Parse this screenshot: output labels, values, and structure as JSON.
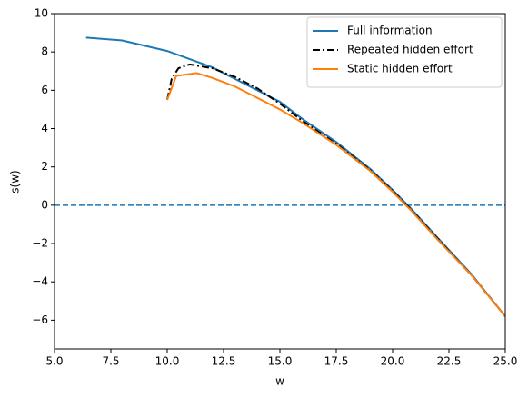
{
  "chart_data": {
    "type": "line",
    "xlabel": "w",
    "ylabel": "s(w)",
    "xlim": [
      5,
      25
    ],
    "ylim": [
      -7.5,
      10
    ],
    "xticks": [
      {
        "value": 5,
        "label": "5.0"
      },
      {
        "value": 7.5,
        "label": "7.5"
      },
      {
        "value": 10,
        "label": "10.0"
      },
      {
        "value": 12.5,
        "label": "12.5"
      },
      {
        "value": 15,
        "label": "15.0"
      },
      {
        "value": 17.5,
        "label": "17.5"
      },
      {
        "value": 20,
        "label": "20.0"
      },
      {
        "value": 22.5,
        "label": "22.5"
      },
      {
        "value": 25,
        "label": "25.0"
      }
    ],
    "yticks": [
      {
        "value": -6,
        "label": "−6"
      },
      {
        "value": -4,
        "label": "−4"
      },
      {
        "value": -2,
        "label": "−2"
      },
      0,
      2,
      4,
      6,
      8,
      10
    ],
    "hline": 0,
    "hline_color": "#1f77b4",
    "hline_style": "dashed",
    "legend": "upper right",
    "series": [
      {
        "name": "Full information",
        "color": "#1f77b4",
        "style": "solid",
        "x": [
          6.4,
          8,
          10,
          12,
          14,
          15,
          16,
          17.5,
          19,
          20,
          20.8,
          22,
          23.5,
          25
        ],
        "values": [
          8.75,
          8.6,
          8.05,
          7.2,
          6.0,
          5.4,
          4.5,
          3.3,
          1.9,
          0.8,
          -0.15,
          -1.7,
          -3.6,
          -5.8
        ]
      },
      {
        "name": "Repeated hidden effort",
        "color": "#000000",
        "style": "dashdot",
        "x": [
          10,
          10.2,
          10.5,
          11,
          12,
          13,
          14,
          15,
          16,
          17.5,
          19,
          20,
          20.8,
          22,
          23.5,
          25
        ],
        "values": [
          5.5,
          6.6,
          7.15,
          7.35,
          7.15,
          6.7,
          6.1,
          5.3,
          4.4,
          3.2,
          1.85,
          0.75,
          -0.2,
          -1.75,
          -3.65,
          -5.8
        ]
      },
      {
        "name": "Static hidden effort",
        "color": "#ff7f0e",
        "style": "solid",
        "x": [
          10,
          10.4,
          11.3,
          12,
          13,
          14,
          15,
          16,
          17.5,
          19,
          20,
          20.8,
          22,
          23.5,
          25
        ],
        "values": [
          5.5,
          6.75,
          6.9,
          6.65,
          6.2,
          5.6,
          5.0,
          4.3,
          3.15,
          1.8,
          0.7,
          -0.25,
          -1.8,
          -3.65,
          -5.8
        ]
      }
    ]
  }
}
